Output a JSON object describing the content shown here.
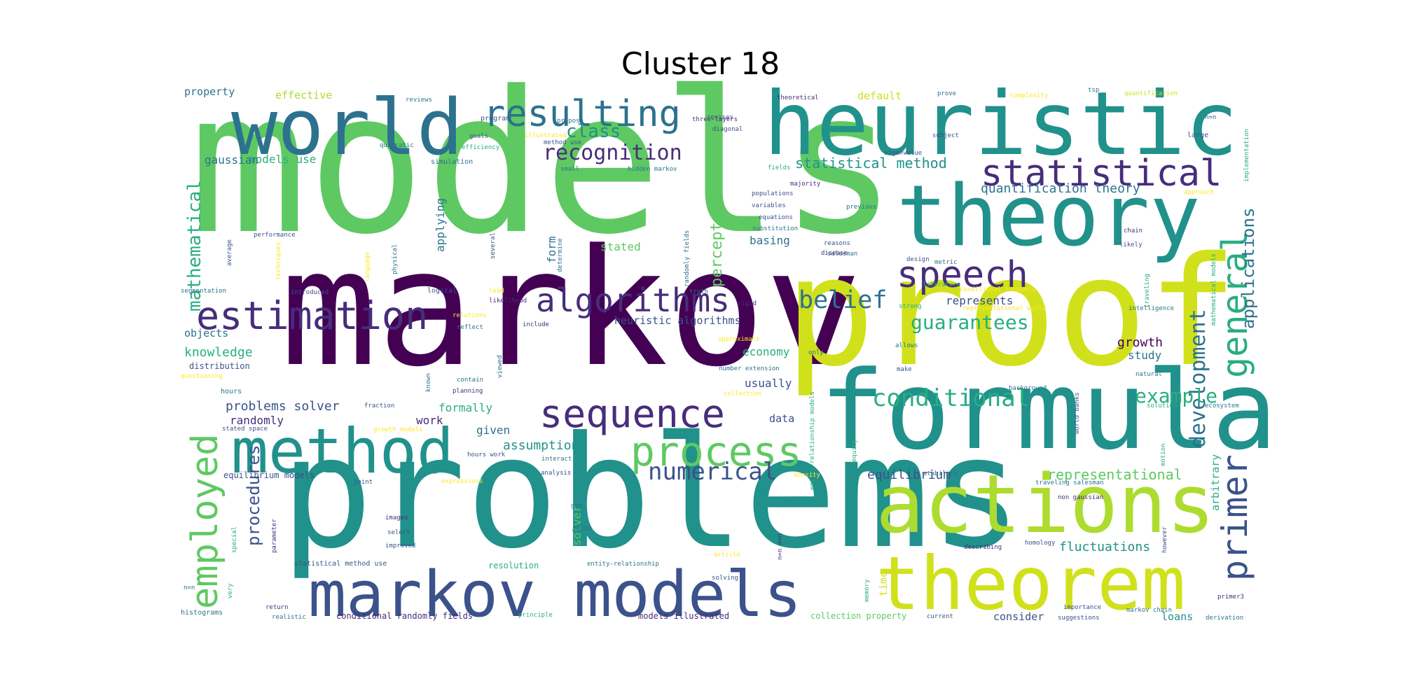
{
  "title": "Cluster 18",
  "palette": {
    "dark_purple": "#440154",
    "indigo": "#472d7b",
    "blue": "#3b528b",
    "steel": "#2c728e",
    "teal": "#21918c",
    "green_teal": "#28ae80",
    "green": "#5ec962",
    "lime": "#addc30",
    "yellow": "#d0e11c",
    "light_yellow": "#fde725"
  },
  "words": [
    {
      "text": "models",
      "size": 1.0,
      "color": "#5ec962"
    },
    {
      "text": "markov",
      "size": 0.75,
      "color": "#440154"
    },
    {
      "text": "problems",
      "size": 0.75,
      "color": "#21918c"
    },
    {
      "text": "proof",
      "size": 0.7,
      "color": "#d0e11c"
    },
    {
      "text": "heuristic",
      "size": 0.5,
      "color": "#21918c"
    },
    {
      "text": "formula",
      "size": 0.55,
      "color": "#21918c"
    },
    {
      "text": "world",
      "size": 0.5,
      "color": "#2c728e"
    },
    {
      "text": "theory",
      "size": 0.5,
      "color": "#21918c"
    },
    {
      "text": "actions",
      "size": 0.5,
      "color": "#addc30"
    },
    {
      "text": "theorem",
      "size": 0.45,
      "color": "#d0e11c"
    },
    {
      "text": "markov models",
      "size": 0.42,
      "color": "#3b528b"
    },
    {
      "text": "method",
      "size": 0.42,
      "color": "#21918c"
    },
    {
      "text": "estimation",
      "size": 0.3,
      "color": "#472d7b"
    },
    {
      "text": "statistical",
      "size": 0.3,
      "color": "#472d7b"
    },
    {
      "text": "resulting",
      "size": 0.3,
      "color": "#2c728e"
    },
    {
      "text": "sequence",
      "size": 0.3,
      "color": "#472d7b"
    },
    {
      "text": "process",
      "size": 0.3,
      "color": "#5ec962"
    },
    {
      "text": "algorithms",
      "size": 0.28,
      "color": "#472d7b"
    },
    {
      "text": "speech",
      "size": 0.3,
      "color": "#472d7b"
    },
    {
      "text": "general",
      "size": 0.3,
      "color": "#28ae80"
    },
    {
      "text": "employed",
      "size": 0.3,
      "color": "#5ec962"
    },
    {
      "text": "primer",
      "size": 0.28,
      "color": "#3b528b"
    },
    {
      "text": "belief",
      "size": 0.2,
      "color": "#2c728e"
    },
    {
      "text": "conditional",
      "size": 0.2,
      "color": "#28ae80"
    },
    {
      "text": "numerical",
      "size": 0.18,
      "color": "#3b528b"
    },
    {
      "text": "recognition",
      "size": 0.18,
      "color": "#472d7b"
    },
    {
      "text": "guarantees",
      "size": 0.16,
      "color": "#28ae80"
    },
    {
      "text": "development",
      "size": 0.15,
      "color": "#2c728e"
    },
    {
      "text": "example",
      "size": 0.15,
      "color": "#28ae80"
    },
    {
      "text": "class",
      "size": 0.15,
      "color": "#21918c"
    },
    {
      "text": "mathematical",
      "size": 0.14,
      "color": "#28ae80"
    },
    {
      "text": "applications",
      "size": 0.13,
      "color": "#2c728e"
    },
    {
      "text": "perceptrons",
      "size": 0.12,
      "color": "#5ec962"
    },
    {
      "text": "procedures",
      "size": 0.12,
      "color": "#3b528b"
    },
    {
      "text": "quantification theory",
      "size": 0.1,
      "color": "#2c728e"
    },
    {
      "text": "statistical method",
      "size": 0.1,
      "color": "#21918c"
    },
    {
      "text": "representational",
      "size": 0.1,
      "color": "#5ec962"
    },
    {
      "text": "assumptions",
      "size": 0.1,
      "color": "#21918c"
    },
    {
      "text": "fluctuations",
      "size": 0.1,
      "color": "#21918c"
    },
    {
      "text": "equilibrium",
      "size": 0.1,
      "color": "#3b528b"
    },
    {
      "text": "problems solver",
      "size": 0.1,
      "color": "#3b528b"
    },
    {
      "text": "heuristic algorithms",
      "size": 0.09,
      "color": "#3b528b"
    },
    {
      "text": "models use",
      "size": 0.09,
      "color": "#28ae80"
    },
    {
      "text": "gaussian",
      "size": 0.09,
      "color": "#2c728e"
    },
    {
      "text": "knowledge",
      "size": 0.09,
      "color": "#28ae80"
    },
    {
      "text": "randomly",
      "size": 0.09,
      "color": "#472d7b"
    },
    {
      "text": "applying",
      "size": 0.09,
      "color": "#2c728e"
    },
    {
      "text": "form",
      "size": 0.09,
      "color": "#2c728e"
    },
    {
      "text": "stated",
      "size": 0.09,
      "color": "#5ec962"
    },
    {
      "text": "basing",
      "size": 0.09,
      "color": "#2c728e"
    },
    {
      "text": "represents",
      "size": 0.09,
      "color": "#3b528b"
    },
    {
      "text": "growth",
      "size": 0.09,
      "color": "#440154"
    },
    {
      "text": "study",
      "size": 0.09,
      "color": "#2c728e"
    },
    {
      "text": "economy",
      "size": 0.09,
      "color": "#28ae80"
    },
    {
      "text": "usually",
      "size": 0.09,
      "color": "#3b528b"
    },
    {
      "text": "formally",
      "size": 0.09,
      "color": "#28ae80"
    },
    {
      "text": "given",
      "size": 0.09,
      "color": "#2c728e"
    },
    {
      "text": "work",
      "size": 0.09,
      "color": "#472d7b"
    },
    {
      "text": "data",
      "size": 0.08,
      "color": "#3b528b"
    },
    {
      "text": "solver",
      "size": 0.08,
      "color": "#5ec962"
    },
    {
      "text": "arbitrary",
      "size": 0.08,
      "color": "#28ae80"
    },
    {
      "text": "objects",
      "size": 0.08,
      "color": "#2c728e"
    },
    {
      "text": "effective",
      "size": 0.08,
      "color": "#addc30"
    },
    {
      "text": "property",
      "size": 0.08,
      "color": "#2c728e"
    },
    {
      "text": "default",
      "size": 0.08,
      "color": "#d0e11c"
    },
    {
      "text": "loans",
      "size": 0.08,
      "color": "#21918c"
    },
    {
      "text": "consider",
      "size": 0.08,
      "color": "#3b528b"
    },
    {
      "text": "time",
      "size": 0.08,
      "color": "#d0e11c"
    },
    {
      "text": "resolution",
      "size": 0.06,
      "color": "#28ae80"
    },
    {
      "text": "equilibrium models",
      "size": 0.06,
      "color": "#3b528b"
    },
    {
      "text": "distribution",
      "size": 0.06,
      "color": "#3b528b"
    },
    {
      "text": "conditional randomly fields",
      "size": 0.06,
      "color": "#472d7b"
    },
    {
      "text": "models illustrated",
      "size": 0.06,
      "color": "#472d7b"
    },
    {
      "text": "collection property",
      "size": 0.06,
      "color": "#5ec962"
    },
    {
      "text": "statistical method use",
      "size": 0.05,
      "color": "#3b528b"
    },
    {
      "text": "histograms",
      "size": 0.05,
      "color": "#2c728e"
    },
    {
      "text": "hours",
      "size": 0.05,
      "color": "#2c728e"
    },
    {
      "text": "logical",
      "size": 0.05,
      "color": "#3b528b"
    },
    {
      "text": "large",
      "size": 0.05,
      "color": "#3b528b"
    },
    {
      "text": "simulation",
      "size": 0.05,
      "color": "#2c728e"
    },
    {
      "text": "program",
      "size": 0.05,
      "color": "#3b528b"
    },
    {
      "text": "propose",
      "size": 0.04,
      "color": "#2c728e"
    },
    {
      "text": "revises",
      "size": 0.04,
      "color": "#3b528b"
    },
    {
      "text": "diagonal",
      "size": 0.04,
      "color": "#3b528b"
    },
    {
      "text": "three-layers",
      "size": 0.04,
      "color": "#472d7b"
    },
    {
      "text": "theoretical",
      "size": 0.04,
      "color": "#472d7b"
    },
    {
      "text": "prove",
      "size": 0.04,
      "color": "#2c728e"
    },
    {
      "text": "complexity",
      "size": 0.04,
      "color": "#fde725"
    },
    {
      "text": "tsp",
      "size": 0.04,
      "color": "#2c728e"
    },
    {
      "text": "quantification",
      "size": 0.04,
      "color": "#d0e11c"
    },
    {
      "text": "reviews",
      "size": 0.04,
      "color": "#2c728e"
    },
    {
      "text": "goals",
      "size": 0.04,
      "color": "#3b528b"
    },
    {
      "text": "illustrated",
      "size": 0.04,
      "color": "#fde725"
    },
    {
      "text": "efficiency",
      "size": 0.04,
      "color": "#28ae80"
    },
    {
      "text": "method use",
      "size": 0.04,
      "color": "#3b528b"
    },
    {
      "text": "subject",
      "size": 0.04,
      "color": "#3b528b"
    },
    {
      "text": "n=n",
      "size": 0.04,
      "color": "#3b528b"
    },
    {
      "text": "quadratic",
      "size": 0.04,
      "color": "#2c728e"
    },
    {
      "text": "small",
      "size": 0.04,
      "color": "#2c728e"
    },
    {
      "text": "hidden markov",
      "size": 0.04,
      "color": "#2c728e"
    },
    {
      "text": "fields",
      "size": 0.04,
      "color": "#28ae80"
    },
    {
      "text": "majority",
      "size": 0.04,
      "color": "#472d7b"
    },
    {
      "text": "populations",
      "size": 0.04,
      "color": "#3b528b"
    },
    {
      "text": "eigenvalue",
      "size": 0.04,
      "color": "#3b528b"
    },
    {
      "text": "approach",
      "size": 0.04,
      "color": "#fde725"
    },
    {
      "text": "implementation",
      "size": 0.04,
      "color": "#28ae80"
    },
    {
      "text": "variables",
      "size": 0.04,
      "color": "#3b528b"
    },
    {
      "text": "equations",
      "size": 0.04,
      "color": "#3b528b"
    },
    {
      "text": "substitution",
      "size": 0.04,
      "color": "#2c728e"
    },
    {
      "text": "previous",
      "size": 0.04,
      "color": "#2c728e"
    },
    {
      "text": "chain",
      "size": 0.04,
      "color": "#472d7b"
    },
    {
      "text": "likely",
      "size": 0.04,
      "color": "#3b528b"
    },
    {
      "text": "techniques",
      "size": 0.04,
      "color": "#fde725"
    },
    {
      "text": "several",
      "size": 0.04,
      "color": "#3b528b"
    },
    {
      "text": "physical",
      "size": 0.04,
      "color": "#2c728e"
    },
    {
      "text": "language",
      "size": 0.04,
      "color": "#fde725"
    },
    {
      "text": "determine",
      "size": 0.04,
      "color": "#2c728e"
    },
    {
      "text": "randomly fields",
      "size": 0.04,
      "color": "#2c728e"
    },
    {
      "text": "reasons",
      "size": 0.04,
      "color": "#3b528b"
    },
    {
      "text": "salesman",
      "size": 0.04,
      "color": "#2c728e"
    },
    {
      "text": "disease",
      "size": 0.04,
      "color": "#472d7b"
    },
    {
      "text": "design",
      "size": 0.04,
      "color": "#3b528b"
    },
    {
      "text": "metric",
      "size": 0.04,
      "color": "#2c728e"
    },
    {
      "text": "literature",
      "size": 0.04,
      "color": "#28ae80"
    },
    {
      "text": "traveling",
      "size": 0.04,
      "color": "#28ae80"
    },
    {
      "text": "mathematical models",
      "size": 0.04,
      "color": "#28ae80"
    },
    {
      "text": "performance",
      "size": 0.04,
      "color": "#3b528b"
    },
    {
      "text": "average",
      "size": 0.04,
      "color": "#3b528b"
    },
    {
      "text": "truth",
      "size": 0.04,
      "color": "#2c728e"
    },
    {
      "text": "segmentation",
      "size": 0.04,
      "color": "#2c728e"
    },
    {
      "text": "introduced",
      "size": 0.04,
      "color": "#3b528b"
    },
    {
      "text": "lead",
      "size": 0.04,
      "color": "#fde725"
    },
    {
      "text": "likelihood",
      "size": 0.04,
      "color": "#472d7b"
    },
    {
      "text": "rigid",
      "size": 0.04,
      "color": "#472d7b"
    },
    {
      "text": "strong",
      "size": 0.04,
      "color": "#28ae80"
    },
    {
      "text": "conditional randomly",
      "size": 0.04,
      "color": "#fde725"
    },
    {
      "text": "representational world",
      "size": 0.04,
      "color": "#fde725"
    },
    {
      "text": "intelligence",
      "size": 0.04,
      "color": "#2c728e"
    },
    {
      "text": "relations",
      "size": 0.04,
      "color": "#fde725"
    },
    {
      "text": "include",
      "size": 0.04,
      "color": "#472d7b"
    },
    {
      "text": "reflect",
      "size": 0.04,
      "color": "#2c728e"
    },
    {
      "text": "approximate",
      "size": 0.04,
      "color": "#fde725"
    },
    {
      "text": "only",
      "size": 0.04,
      "color": "#2c728e"
    },
    {
      "text": "allows",
      "size": 0.04,
      "color": "#2c728e"
    },
    {
      "text": "make",
      "size": 0.04,
      "color": "#3b528b"
    },
    {
      "text": "questioning",
      "size": 0.04,
      "color": "#fde725"
    },
    {
      "text": "contain",
      "size": 0.04,
      "color": "#2c728e"
    },
    {
      "text": "viewed",
      "size": 0.04,
      "color": "#2c728e"
    },
    {
      "text": "known",
      "size": 0.04,
      "color": "#2c728e"
    },
    {
      "text": "number extension",
      "size": 0.04,
      "color": "#2c728e"
    },
    {
      "text": "collection",
      "size": 0.04,
      "color": "#fde725"
    },
    {
      "text": "planning",
      "size": 0.04,
      "color": "#472d7b"
    },
    {
      "text": "natural",
      "size": 0.04,
      "color": "#2c728e"
    },
    {
      "text": "background",
      "size": 0.04,
      "color": "#2c728e"
    },
    {
      "text": "world banks",
      "size": 0.04,
      "color": "#3b528b"
    },
    {
      "text": "fraction",
      "size": 0.04,
      "color": "#3b528b"
    },
    {
      "text": "solution",
      "size": 0.04,
      "color": "#28ae80"
    },
    {
      "text": "ecosystem",
      "size": 0.04,
      "color": "#2c728e"
    },
    {
      "text": "stated space",
      "size": 0.04,
      "color": "#3b528b"
    },
    {
      "text": "growth models",
      "size": 0.04,
      "color": "#fde725"
    },
    {
      "text": "equity",
      "size": 0.04,
      "color": "#28ae80"
    },
    {
      "text": "entity-relationship models",
      "size": 0.04,
      "color": "#28ae80"
    },
    {
      "text": "density",
      "size": 0.04,
      "color": "#fde725"
    },
    {
      "text": "stability",
      "size": 0.04,
      "color": "#2c728e"
    },
    {
      "text": "interact",
      "size": 0.04,
      "color": "#2c728e"
    },
    {
      "text": "hours work",
      "size": 0.04,
      "color": "#3b528b"
    },
    {
      "text": "analysis",
      "size": 0.04,
      "color": "#3b528b"
    },
    {
      "text": "expressions",
      "size": 0.04,
      "color": "#fde725"
    },
    {
      "text": "traveling salesman",
      "size": 0.04,
      "color": "#2c728e"
    },
    {
      "text": "motion",
      "size": 0.04,
      "color": "#28ae80"
    },
    {
      "text": "joint",
      "size": 0.04,
      "color": "#3b528b"
    },
    {
      "text": "gmm",
      "size": 0.04,
      "color": "#2c728e"
    },
    {
      "text": "non gaussian",
      "size": 0.04,
      "color": "#472d7b"
    },
    {
      "text": "images",
      "size": 0.04,
      "color": "#472d7b"
    },
    {
      "text": "select",
      "size": 0.04,
      "color": "#3b528b"
    },
    {
      "text": "improved",
      "size": 0.04,
      "color": "#3b528b"
    },
    {
      "text": "special",
      "size": 0.04,
      "color": "#28ae80"
    },
    {
      "text": "parameter",
      "size": 0.04,
      "color": "#472d7b"
    },
    {
      "text": "banks",
      "size": 0.04,
      "color": "#2c728e"
    },
    {
      "text": "article",
      "size": 0.04,
      "color": "#fde725"
    },
    {
      "text": "entity-relationship",
      "size": 0.04,
      "color": "#2c728e"
    },
    {
      "text": "n=n n=n",
      "size": 0.04,
      "color": "#472d7b"
    },
    {
      "text": "describing",
      "size": 0.04,
      "color": "#472d7b"
    },
    {
      "text": "homology",
      "size": 0.04,
      "color": "#3b528b"
    },
    {
      "text": "however",
      "size": 0.04,
      "color": "#3b528b"
    },
    {
      "text": "solving",
      "size": 0.04,
      "color": "#3b528b"
    },
    {
      "text": "memory",
      "size": 0.04,
      "color": "#28ae80"
    },
    {
      "text": "n=n",
      "size": 0.04,
      "color": "#2c728e"
    },
    {
      "text": "very",
      "size": 0.04,
      "color": "#28ae80"
    },
    {
      "text": "return",
      "size": 0.04,
      "color": "#472d7b"
    },
    {
      "text": "realistic",
      "size": 0.04,
      "color": "#2c728e"
    },
    {
      "text": "principle",
      "size": 0.04,
      "color": "#28ae80"
    },
    {
      "text": "current",
      "size": 0.04,
      "color": "#3b528b"
    },
    {
      "text": "importance",
      "size": 0.04,
      "color": "#3b528b"
    },
    {
      "text": "suggestions",
      "size": 0.04,
      "color": "#3b528b"
    },
    {
      "text": "markov chain",
      "size": 0.04,
      "color": "#2c728e"
    },
    {
      "text": "derivation",
      "size": 0.04,
      "color": "#2c728e"
    },
    {
      "text": "primer3",
      "size": 0.04,
      "color": "#472d7b"
    }
  ]
}
